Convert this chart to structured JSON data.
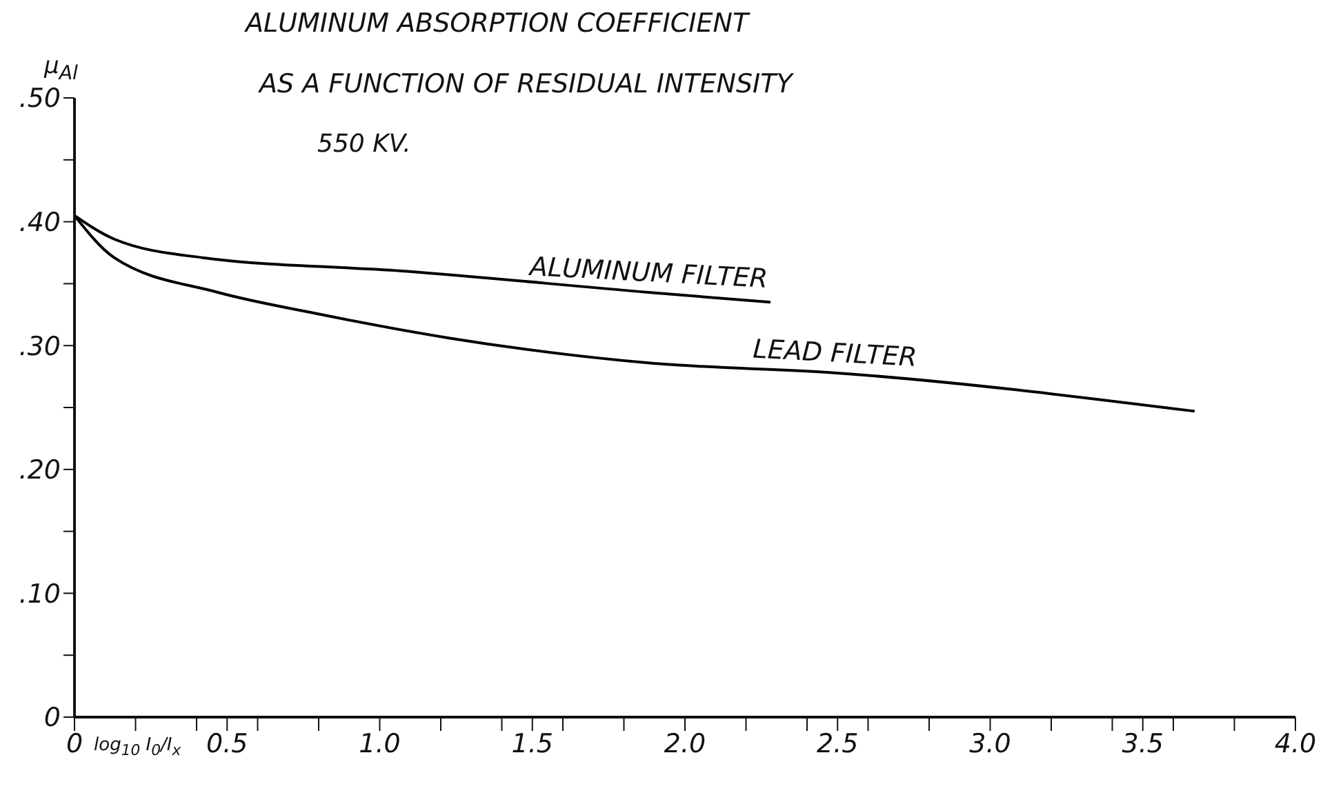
{
  "chart_data": {
    "type": "line",
    "title": "ALUMINUM ABSORPTION COEFFICIENT",
    "subtitle": "AS A FUNCTION OF RESIDUAL INTENSITY",
    "annotations": [
      "550 KV."
    ],
    "xlabel": "log$_{10}$ I$_{0}$/I$_{x}$",
    "ylabel": "μ$_{Al}$",
    "xlim": [
      0,
      4
    ],
    "xticks": [
      0,
      {
        "value": 0.2,
        "label": null
      },
      {
        "value": 0.4,
        "label": null
      },
      0.5,
      {
        "value": 0.6,
        "label": null
      },
      {
        "value": 0.8,
        "label": null
      },
      {
        "value": 1,
        "label": "1.0"
      },
      {
        "value": 1.2,
        "label": null
      },
      {
        "value": 1.4,
        "label": null
      },
      1.5,
      {
        "value": 1.6,
        "label": null
      },
      {
        "value": 1.8,
        "label": null
      },
      {
        "value": 2,
        "label": "2.0"
      },
      {
        "value": 2.2,
        "label": null
      },
      {
        "value": 2.4,
        "label": null
      },
      2.5,
      {
        "value": 2.6,
        "label": null
      },
      {
        "value": 2.8,
        "label": null
      },
      {
        "value": 3,
        "label": "3.0"
      },
      {
        "value": 3.2,
        "label": null
      },
      {
        "value": 3.4,
        "label": null
      },
      3.5,
      {
        "value": 3.6,
        "label": null
      },
      {
        "value": 3.8,
        "label": null
      },
      {
        "value": 4,
        "label": "4.0"
      }
    ],
    "ylim": [
      0,
      0.5
    ],
    "yticks": [
      {
        "value": 0,
        "label": "0"
      },
      {
        "value": 0.05,
        "label": null
      },
      {
        "value": 0.1,
        "label": ".10"
      },
      {
        "value": 0.15,
        "label": null
      },
      {
        "value": 0.2,
        "label": ".20"
      },
      {
        "value": 0.25,
        "label": null
      },
      {
        "value": 0.3,
        "label": ".30"
      },
      {
        "value": 0.35,
        "label": null
      },
      {
        "value": 0.4,
        "label": ".40"
      },
      {
        "value": 0.45,
        "label": null
      },
      {
        "value": 0.5,
        "label": ".50"
      }
    ],
    "grid": false,
    "legend": false,
    "series": [
      {
        "name": "ALUMINUM FILTER",
        "color": "#000000",
        "x": [
          0,
          0.13,
          0.42,
          1.09,
          1.88,
          2.28
        ],
        "values": [
          0.405,
          0.386,
          0.371,
          0.36,
          0.343,
          0.335
        ]
      },
      {
        "name": "LEAD FILTER",
        "color": "#000000",
        "x": [
          0,
          0.13,
          0.47,
          0.79,
          1.23,
          1.88,
          2.49,
          3.67
        ],
        "values": [
          0.405,
          0.371,
          0.343,
          0.326,
          0.306,
          0.286,
          0.278,
          0.247
        ]
      }
    ]
  }
}
